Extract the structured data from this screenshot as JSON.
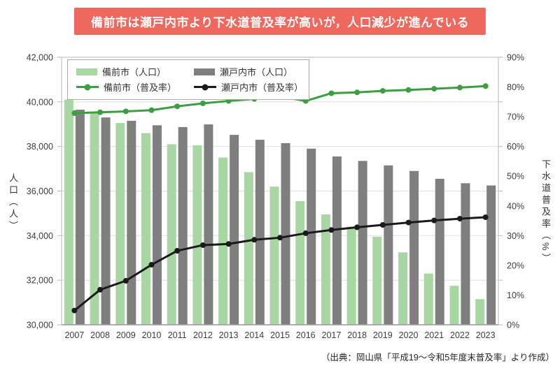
{
  "banner": {
    "title": "備前市は瀬戸内市より下水道普及率が高いが，人口減少が進んでいる",
    "bg_color": "#f0685d"
  },
  "legend": {
    "items": [
      {
        "label": "備前市（人口）",
        "type": "bar"
      },
      {
        "label": "瀬戸内市（人口）",
        "type": "bar"
      },
      {
        "label": "備前市（普及率）",
        "type": "line"
      },
      {
        "label": "瀬戸内市（普及率）",
        "type": "line"
      }
    ]
  },
  "axes": {
    "left": {
      "title": "人口（人）",
      "tick_labels": [
        "42,000",
        "40,000",
        "38,000",
        "36,000",
        "34,000",
        "32,000",
        "30,000"
      ]
    },
    "right": {
      "title": "下水道普及率（%）",
      "tick_labels": [
        "90%",
        "80%",
        "70%",
        "60%",
        "50%",
        "40%",
        "30%",
        "20%",
        "10%",
        "0%"
      ]
    }
  },
  "source": "（出典：岡山県「平成19～令和5年度末普及率」より作成）",
  "chart_data": {
    "type": "bar+line combo",
    "title": "備前市は瀬戸内市より下水道普及率が高いが，人口減少が進んでいる",
    "categories": [
      "2007",
      "2008",
      "2009",
      "2010",
      "2011",
      "2012",
      "2013",
      "2014",
      "2015",
      "2016",
      "2017",
      "2018",
      "2019",
      "2020",
      "2021",
      "2022",
      "2023"
    ],
    "series": [
      {
        "name": "備前市（人口）",
        "type": "bar",
        "axis": "left",
        "color": "#a9d7a3",
        "values": [
          40100,
          39500,
          39050,
          38600,
          38100,
          38050,
          37500,
          36850,
          36200,
          35550,
          34950,
          34400,
          33950,
          33250,
          32300,
          31750,
          31150
        ]
      },
      {
        "name": "瀬戸内市（人口）",
        "type": "bar",
        "axis": "left",
        "color": "#7f7f7f",
        "values": [
          39650,
          39300,
          39150,
          38950,
          38870,
          38990,
          38520,
          38300,
          38150,
          37900,
          37550,
          37350,
          37150,
          36900,
          36550,
          36350,
          36250
        ]
      },
      {
        "name": "備前市（普及率）",
        "type": "line",
        "axis": "right",
        "color": "#3b9e41",
        "values": [
          71.2,
          71.5,
          71.8,
          72.2,
          73.5,
          74.5,
          75.3,
          76.0,
          76.8,
          75.3,
          77.9,
          78.2,
          78.7,
          79.0,
          79.4,
          79.8,
          80.3
        ]
      },
      {
        "name": "瀬戸内市（普及率）",
        "type": "line",
        "axis": "right",
        "color": "#1a1a1a",
        "values": [
          4.8,
          11.8,
          14.8,
          20.2,
          24.9,
          26.8,
          27.2,
          28.6,
          29.3,
          30.8,
          31.9,
          32.8,
          33.6,
          34.4,
          35.1,
          35.7,
          36.2
        ]
      }
    ],
    "left_axis": {
      "label": "人口（人）",
      "range": [
        30000,
        42000
      ],
      "tick_step": 2000,
      "gridlines": true
    },
    "right_axis": {
      "label": "下水道普及率（%）",
      "range": [
        0,
        90
      ],
      "tick_step": 10
    },
    "legend_position": "top-left-inside",
    "xlabel": "",
    "ylabel": "人口（人）",
    "y2label": "下水道普及率（%）"
  }
}
